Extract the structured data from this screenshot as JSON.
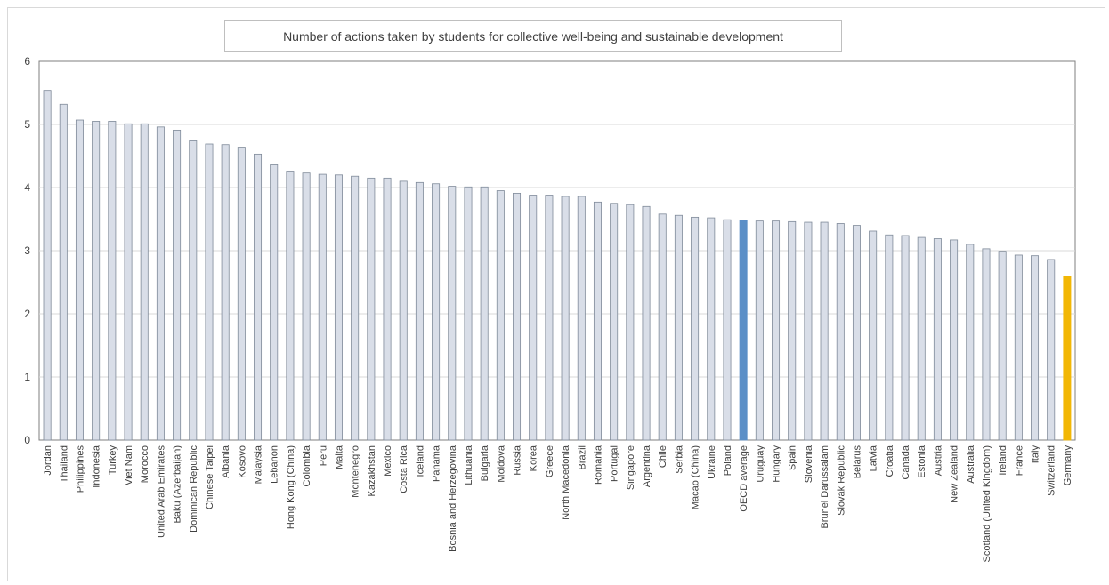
{
  "chart_data": {
    "type": "bar",
    "title": "Number of actions taken by students for collective well-being and sustainable development",
    "xlabel": "",
    "ylabel": "",
    "ylim": [
      0,
      6
    ],
    "yticks": [
      "0",
      "1",
      "2",
      "3",
      "4",
      "5",
      "6"
    ],
    "grid": true,
    "categories": [
      "Jordan",
      "Thailand",
      "Philippines",
      "Indonesia",
      "Turkey",
      "Viet Nam",
      "Morocco",
      "United Arab Emirates",
      "Baku (Azerbaijan)",
      "Dominican Republic",
      "Chinese Taipei",
      "Albania",
      "Kosovo",
      "Malaysia",
      "Lebanon",
      "Hong Kong (China)",
      "Colombia",
      "Peru",
      "Malta",
      "Montenegro",
      "Kazakhstan",
      "Mexico",
      "Costa Rica",
      "Iceland",
      "Panama",
      "Bosnia and Herzegovina",
      "Lithuania",
      "Bulgaria",
      "Moldova",
      "Russia",
      "Korea",
      "Greece",
      "North Macedonia",
      "Brazil",
      "Romania",
      "Portugal",
      "Singapore",
      "Argentina",
      "Chile",
      "Serbia",
      "Macao (China)",
      "Ukraine",
      "Poland",
      "OECD average",
      "Uruguay",
      "Hungary",
      "Spain",
      "Slovenia",
      "Brunei Darussalam",
      "Slovak Republic",
      "Belarus",
      "Latvia",
      "Croatia",
      "Canada",
      "Estonia",
      "Austria",
      "New Zealand",
      "Australia",
      "Scotland (United Kingdom)",
      "Ireland",
      "France",
      "Italy",
      "Switzerland",
      "Germany"
    ],
    "values": [
      5.54,
      5.32,
      5.07,
      5.05,
      5.05,
      5.01,
      5.01,
      4.96,
      4.91,
      4.74,
      4.69,
      4.68,
      4.64,
      4.53,
      4.36,
      4.26,
      4.23,
      4.21,
      4.2,
      4.18,
      4.15,
      4.15,
      4.1,
      4.08,
      4.06,
      4.02,
      4.01,
      4.01,
      3.95,
      3.91,
      3.88,
      3.88,
      3.86,
      3.86,
      3.77,
      3.75,
      3.73,
      3.7,
      3.58,
      3.56,
      3.53,
      3.52,
      3.49,
      3.48,
      3.47,
      3.47,
      3.46,
      3.45,
      3.45,
      3.43,
      3.4,
      3.31,
      3.25,
      3.24,
      3.21,
      3.19,
      3.17,
      3.1,
      3.03,
      2.99,
      2.93,
      2.92,
      2.86,
      2.59
    ],
    "colors": {
      "default_fill": "#d9dee8",
      "default_stroke": "#7f8a99",
      "highlight": {
        "OECD average": "#5b8fc7",
        "Germany": "#f2b705"
      },
      "gridline": "#d9d9d9",
      "axis": "#7f7f7f"
    }
  }
}
